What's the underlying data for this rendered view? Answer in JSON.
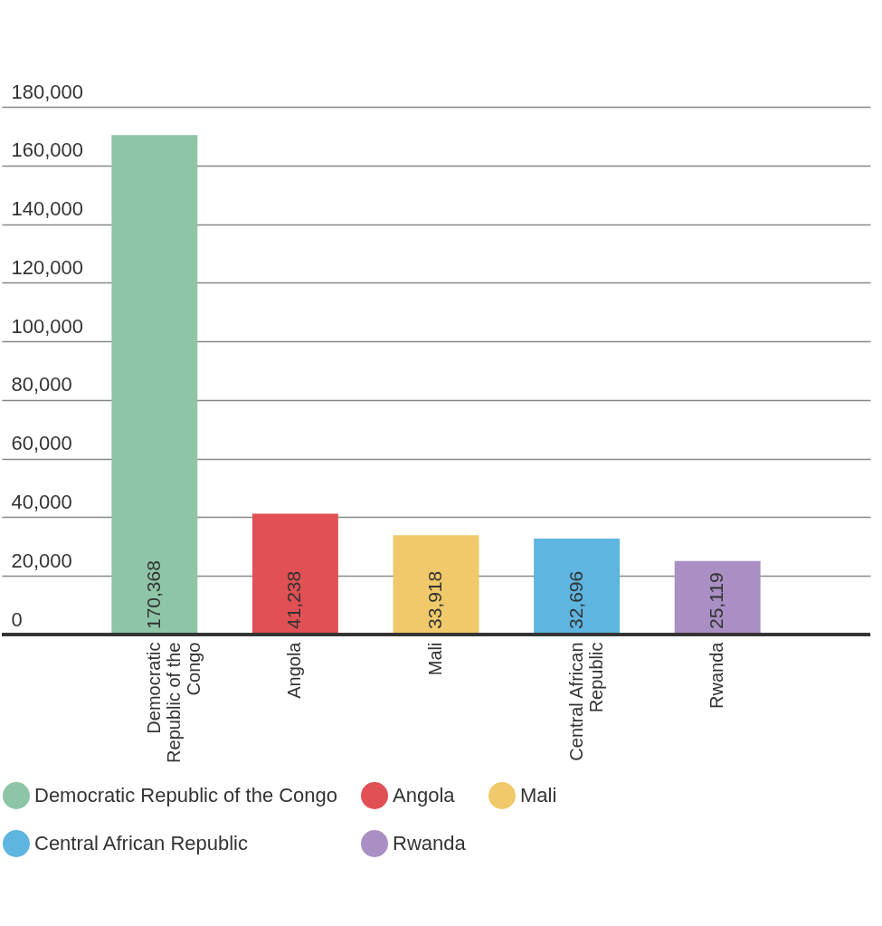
{
  "chart_data": {
    "type": "bar",
    "categories": [
      "Democratic Republic of the Congo",
      "Angola",
      "Mali",
      "Central African Republic",
      "Rwanda"
    ],
    "series": [
      {
        "name": "Democratic Republic of the Congo",
        "color": "#8ec5a6",
        "values": [
          170368,
          null,
          null,
          null,
          null
        ],
        "value_labels": [
          "170,368",
          null,
          null,
          null,
          null
        ]
      },
      {
        "name": "Angola",
        "color": "#e05055",
        "values": [
          null,
          41238,
          null,
          null,
          null
        ],
        "value_labels": [
          null,
          "41,238",
          null,
          null,
          null
        ]
      },
      {
        "name": "Mali",
        "color": "#f0c96a",
        "values": [
          null,
          null,
          33918,
          null,
          null
        ],
        "value_labels": [
          null,
          null,
          "33,918",
          null,
          null
        ]
      },
      {
        "name": "Central African Republic",
        "color": "#5eb5e0",
        "values": [
          null,
          null,
          null,
          32696,
          null
        ],
        "value_labels": [
          null,
          null,
          null,
          "32,696",
          null
        ]
      },
      {
        "name": "Rwanda",
        "color": "#a98fc3",
        "values": [
          null,
          null,
          null,
          null,
          25119
        ],
        "value_labels": [
          null,
          null,
          null,
          null,
          "25,119"
        ]
      }
    ],
    "ylim": [
      0,
      180000
    ],
    "yticks": [
      {
        "value": 0,
        "label": "0"
      },
      {
        "value": 20000,
        "label": "20,000"
      },
      {
        "value": 40000,
        "label": "40,000"
      },
      {
        "value": 60000,
        "label": "60,000"
      },
      {
        "value": 80000,
        "label": "80,000"
      },
      {
        "value": 100000,
        "label": "100,000"
      },
      {
        "value": 120000,
        "label": "120,000"
      },
      {
        "value": 140000,
        "label": "140,000"
      },
      {
        "value": 160000,
        "label": "160,000"
      },
      {
        "value": 180000,
        "label": "180,000"
      }
    ],
    "grid": "y",
    "legend": "bottom"
  }
}
